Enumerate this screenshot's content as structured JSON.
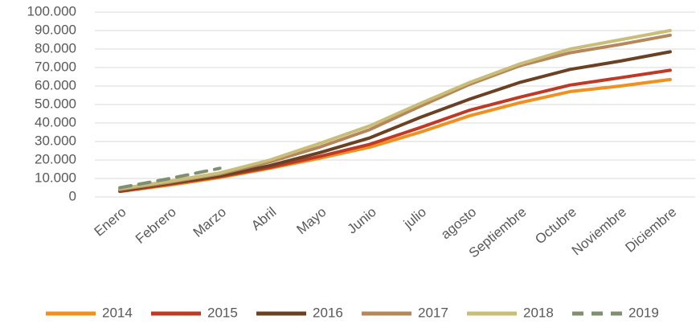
{
  "chart_data": {
    "type": "line",
    "categories": [
      "Enero",
      "Febrero",
      "Marzo",
      "Abril",
      "Mayo",
      "Junio",
      "julio",
      "agosto",
      "Septiembre",
      "Octubre",
      "Noviembre",
      "Diciembre"
    ],
    "series": [
      {
        "name": "2014",
        "color": "#f0901e",
        "values": [
          3000,
          6500,
          10500,
          15500,
          21000,
          27000,
          35000,
          44000,
          51000,
          57000,
          60000,
          63500
        ]
      },
      {
        "name": "2015",
        "color": "#bf3a24",
        "values": [
          3000,
          7000,
          11000,
          16000,
          22000,
          28500,
          37500,
          47000,
          54000,
          60500,
          64500,
          68500
        ]
      },
      {
        "name": "2016",
        "color": "#6b4124",
        "values": [
          3500,
          7500,
          11500,
          17000,
          24000,
          32000,
          43000,
          53000,
          62000,
          69000,
          73500,
          78500
        ]
      },
      {
        "name": "2017",
        "color": "#b5875a",
        "values": [
          4000,
          8000,
          12500,
          19000,
          27000,
          36500,
          49000,
          61000,
          71000,
          78000,
          82500,
          87500
        ]
      },
      {
        "name": "2018",
        "color": "#c9bd7a",
        "values": [
          4500,
          8500,
          13000,
          20000,
          29000,
          38500,
          50500,
          62000,
          72000,
          80000,
          85000,
          90000
        ]
      },
      {
        "name": "2019",
        "color": "#7f9070",
        "dashed": true,
        "values": [
          5000,
          10000,
          15500,
          null,
          null,
          null,
          null,
          null,
          null,
          null,
          null,
          null
        ]
      }
    ],
    "ylim": [
      0,
      100000
    ],
    "yticks": [
      0,
      {
        "value": 10000,
        "label": "10.000"
      },
      {
        "value": 20000,
        "label": "20.000"
      },
      {
        "value": 30000,
        "label": "30.000"
      },
      {
        "value": 40000,
        "label": "40.000"
      },
      {
        "value": 50000,
        "label": "50.000"
      },
      {
        "value": 60000,
        "label": "60.000"
      },
      {
        "value": 70000,
        "label": "70.000"
      },
      {
        "value": 80000,
        "label": "80.000"
      },
      {
        "value": 90000,
        "label": "90.000"
      },
      {
        "value": 100000,
        "label": "100.000"
      }
    ],
    "grid": true,
    "legend": "bottom"
  }
}
